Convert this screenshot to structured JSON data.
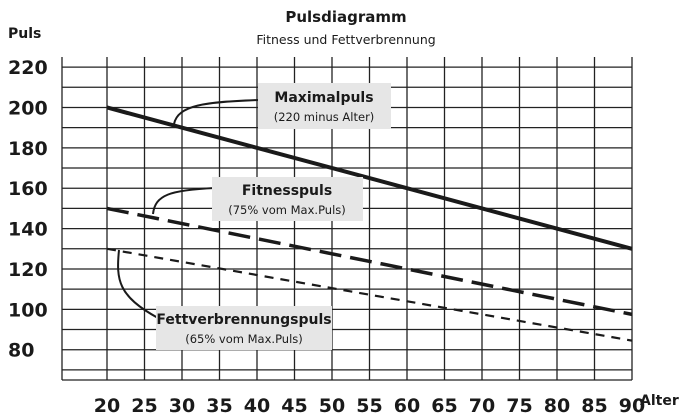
{
  "chart_data": {
    "type": "line",
    "title": "Pulsdiagramm",
    "subtitle": "Fitness und Fettverbrennung",
    "ylabel": "Puls",
    "xlabel": "Alter",
    "xlim": [
      14,
      90
    ],
    "ylim": [
      65,
      225
    ],
    "x_ticks": [
      20,
      25,
      30,
      35,
      40,
      45,
      50,
      55,
      60,
      65,
      70,
      75,
      80,
      85,
      90
    ],
    "y_ticks": [
      80,
      100,
      120,
      140,
      160,
      180,
      200,
      220
    ],
    "grid": true,
    "series": [
      {
        "name": "Maximalpuls",
        "note": "(220 minus Alter)",
        "style": "solid",
        "x": [
          20,
          90
        ],
        "y": [
          200,
          130
        ]
      },
      {
        "name": "Fitnesspuls",
        "note": "(75% vom Max.Puls)",
        "style": "long-dash",
        "x": [
          20,
          90
        ],
        "y": [
          150,
          97.5
        ]
      },
      {
        "name": "Fettverbrennungspuls",
        "note": "(65% vom Max.Puls)",
        "style": "short-dash",
        "x": [
          20,
          90
        ],
        "y": [
          130,
          84.5
        ]
      }
    ],
    "colors": {
      "line": "#1a1a1a",
      "label_box": "#e6e6e6"
    }
  }
}
